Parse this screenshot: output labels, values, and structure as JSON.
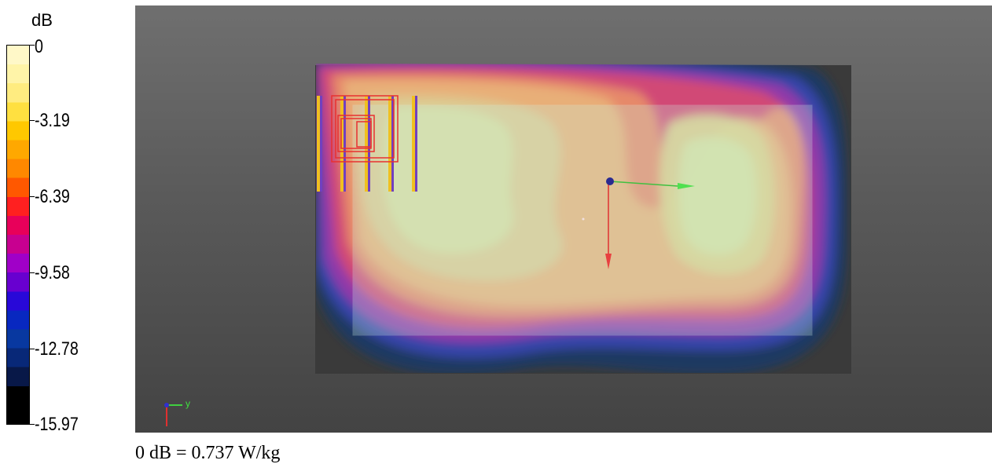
{
  "legend": {
    "unit": "dB",
    "ticks": [
      "0",
      "-3.19",
      "-6.39",
      "-9.58",
      "-12.78",
      "-15.97"
    ],
    "colors": [
      "#fff8c8",
      "#fff4a8",
      "#ffec80",
      "#ffe040",
      "#ffc800",
      "#ffa800",
      "#ff8800",
      "#ff5800",
      "#ff2020",
      "#e8005a",
      "#c80090",
      "#a000c8",
      "#6800d0",
      "#2808d8",
      "#0828c0",
      "#0838a0",
      "#082878",
      "#081848",
      "#000000",
      "#000000"
    ]
  },
  "viewport": {
    "axis_y_label": "y"
  },
  "caption": "0 dB = 0.737 W/kg"
}
